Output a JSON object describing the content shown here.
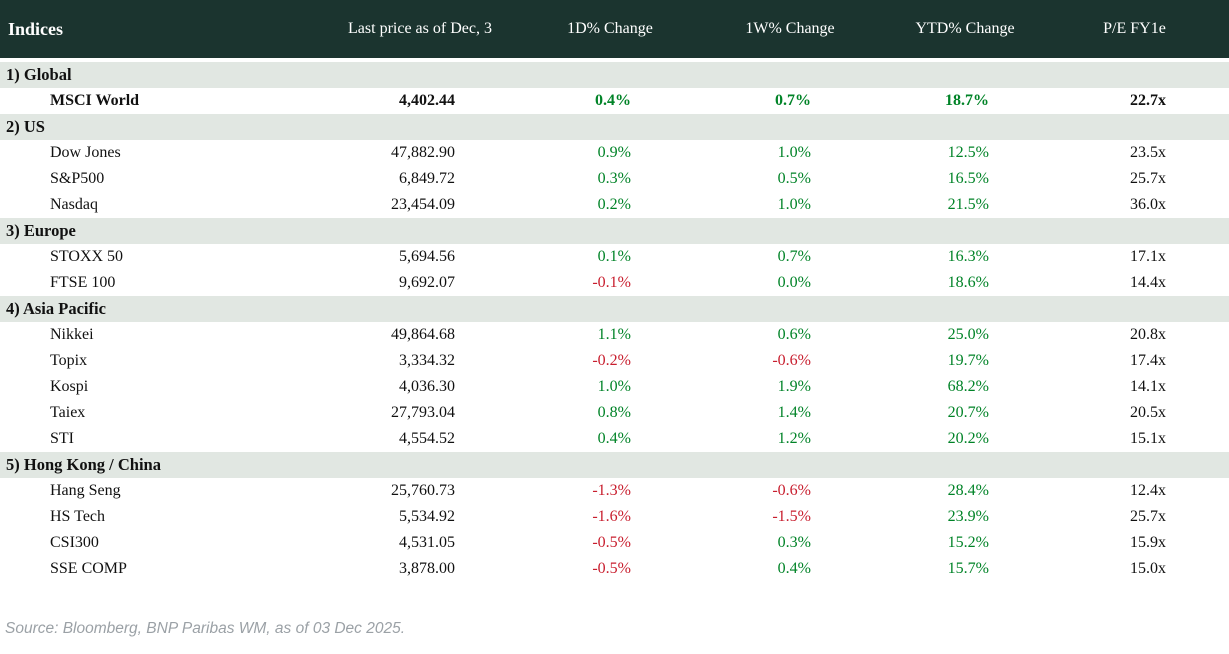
{
  "colors": {
    "header_bg": "#1b342f",
    "section_bg": "#e1e7e2",
    "positive": "#008327",
    "negative": "#c81e2e",
    "source_text": "#9ba1a6"
  },
  "table": {
    "columns": {
      "indices": "Indices",
      "last_price": "Last price as of Dec, 3",
      "d1": "1D% Change",
      "w1": "1W% Change",
      "ytd": "YTD% Change",
      "pe": "P/E FY1e"
    },
    "rows": [
      {
        "t": "s",
        "label": "1) Global"
      },
      {
        "t": "d",
        "c": [
          "MSCI World",
          "4,402.44",
          "0.4%",
          "0.7%",
          "18.7%",
          "22.7x"
        ]
      },
      {
        "t": "s",
        "label": "2) US"
      },
      {
        "t": "d",
        "c": [
          "Dow Jones",
          "47,882.90",
          "0.9%",
          "1.0%",
          "12.5%",
          "23.5x"
        ]
      },
      {
        "t": "d",
        "c": [
          "S&P500",
          "6,849.72",
          "0.3%",
          "0.5%",
          "16.5%",
          "25.7x"
        ]
      },
      {
        "t": "d",
        "c": [
          "Nasdaq",
          "23,454.09",
          "0.2%",
          "1.0%",
          "21.5%",
          "36.0x"
        ]
      },
      {
        "t": "s",
        "label": "3) Europe"
      },
      {
        "t": "d",
        "c": [
          "STOXX 50",
          "5,694.56",
          "0.1%",
          "0.7%",
          "16.3%",
          "17.1x"
        ]
      },
      {
        "t": "d",
        "c": [
          "FTSE 100",
          "9,692.07",
          "-0.1%",
          "0.0%",
          "18.6%",
          "14.4x"
        ]
      },
      {
        "t": "s",
        "label": "4) Asia Pacific"
      },
      {
        "t": "d",
        "c": [
          "Nikkei",
          "49,864.68",
          "1.1%",
          "0.6%",
          "25.0%",
          "20.8x"
        ]
      },
      {
        "t": "d",
        "c": [
          "Topix",
          "3,334.32",
          "-0.2%",
          "-0.6%",
          "19.7%",
          "17.4x"
        ]
      },
      {
        "t": "d",
        "c": [
          "Kospi",
          "4,036.30",
          "1.0%",
          "1.9%",
          "68.2%",
          "14.1x"
        ]
      },
      {
        "t": "d",
        "c": [
          "Taiex",
          "27,793.04",
          "0.8%",
          "1.4%",
          "20.7%",
          "20.5x"
        ]
      },
      {
        "t": "d",
        "c": [
          "STI",
          "4,554.52",
          "0.4%",
          "1.2%",
          "20.2%",
          "15.1x"
        ]
      },
      {
        "t": "s",
        "label": "5) Hong Kong / China"
      },
      {
        "t": "d",
        "c": [
          "Hang Seng",
          "25,760.73",
          "-1.3%",
          "-0.6%",
          "28.4%",
          "12.4x"
        ]
      },
      {
        "t": "d",
        "c": [
          "HS Tech",
          "5,534.92",
          "-1.6%",
          "-1.5%",
          "23.9%",
          "25.7x"
        ]
      },
      {
        "t": "d",
        "c": [
          "CSI300",
          "4,531.05",
          "-0.5%",
          "0.3%",
          "15.2%",
          "15.9x"
        ]
      },
      {
        "t": "d",
        "c": [
          "SSE COMP",
          "3,878.00",
          "-0.5%",
          "0.4%",
          "15.7%",
          "15.0x"
        ]
      }
    ]
  },
  "footer": {
    "source": "Source: Bloomberg, BNP Paribas WM, as of 03 Dec 2025."
  }
}
